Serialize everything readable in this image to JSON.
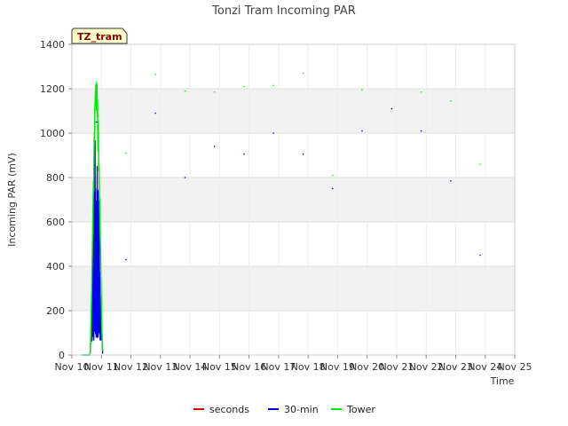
{
  "chart_data": {
    "type": "line",
    "title": "Tonzi Tram Incoming PAR",
    "tag": "TZ_tram",
    "xlabel": "Time",
    "ylabel": "Incoming PAR (mV)",
    "ylim": [
      0,
      1400
    ],
    "yticks": [
      0,
      200,
      400,
      600,
      800,
      1000,
      1200,
      1400
    ],
    "xlim": [
      10,
      25
    ],
    "xticks": [
      {
        "v": 10,
        "label": "Nov 10"
      },
      {
        "v": 11,
        "label": "Nov 11"
      },
      {
        "v": 12,
        "label": "Nov 12"
      },
      {
        "v": 13,
        "label": "Nov 13"
      },
      {
        "v": 14,
        "label": "Nov 14"
      },
      {
        "v": 15,
        "label": "Nov 15"
      },
      {
        "v": 16,
        "label": "Nov 16"
      },
      {
        "v": 17,
        "label": "Nov 17"
      },
      {
        "v": 18,
        "label": "Nov 18"
      },
      {
        "v": 19,
        "label": "Nov 19"
      },
      {
        "v": 20,
        "label": "Nov 20"
      },
      {
        "v": 21,
        "label": "Nov 21"
      },
      {
        "v": 22,
        "label": "Nov 22"
      },
      {
        "v": 23,
        "label": "Nov 23"
      },
      {
        "v": 24,
        "label": "Nov 24"
      },
      {
        "v": 25,
        "label": "Nov 25"
      }
    ],
    "grid": true,
    "legend_position": "bottom",
    "series": [
      {
        "name": "seconds",
        "color": "#dd0000",
        "daily_peaks": []
      },
      {
        "name": "30-min",
        "color": "#0000ee",
        "daily_peaks": [
          1050,
          430,
          1090,
          800,
          940,
          905,
          1000,
          905,
          750,
          1010,
          1110,
          1010,
          785,
          450
        ]
      },
      {
        "name": "Tower",
        "color": "#00ee00",
        "daily_peaks": [
          1230,
          910,
          1265,
          1190,
          1185,
          1210,
          1215,
          1270,
          810,
          1195,
          1110,
          1185,
          1145,
          860
        ]
      }
    ],
    "day_centers": [
      10.83,
      11.83,
      12.83,
      13.83,
      14.83,
      15.83,
      16.83,
      17.83,
      18.83,
      19.83,
      20.83,
      21.83,
      22.83,
      23.83
    ]
  }
}
